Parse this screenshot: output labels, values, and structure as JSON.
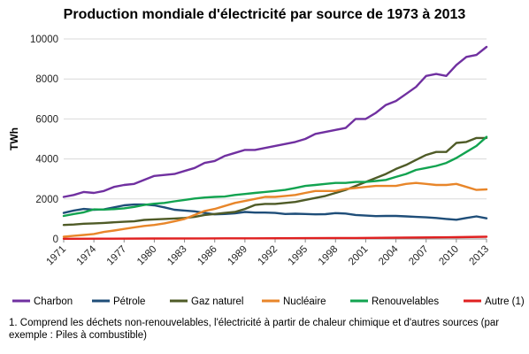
{
  "chart_data": {
    "type": "line",
    "title": "Production mondiale d'électricité par source de 1973 à 2013",
    "ylabel": "TWh",
    "xlabel": "",
    "ylim": [
      0,
      10000
    ],
    "yticks": [
      0,
      2000,
      4000,
      6000,
      8000,
      10000
    ],
    "xlim": [
      1971,
      2013
    ],
    "xticks": [
      1971,
      1974,
      1977,
      1980,
      1983,
      1986,
      1989,
      1992,
      1995,
      1998,
      2001,
      2004,
      2007,
      2010,
      2013
    ],
    "grid": "horizontal",
    "legend_position": "bottom",
    "series": [
      {
        "name": "Charbon",
        "color": "#7030A0",
        "x": [
          1971,
          1972,
          1973,
          1974,
          1975,
          1976,
          1977,
          1978,
          1979,
          1980,
          1981,
          1982,
          1983,
          1984,
          1985,
          1986,
          1987,
          1988,
          1989,
          1990,
          1991,
          1992,
          1993,
          1994,
          1995,
          1996,
          1997,
          1998,
          1999,
          2000,
          2001,
          2002,
          2003,
          2004,
          2005,
          2006,
          2007,
          2008,
          2009,
          2010,
          2011,
          2012,
          2013
        ],
        "y": [
          2100,
          2200,
          2350,
          2300,
          2400,
          2600,
          2700,
          2750,
          2950,
          3150,
          3200,
          3250,
          3400,
          3550,
          3800,
          3900,
          4150,
          4300,
          4450,
          4450,
          4550,
          4650,
          4750,
          4850,
          5000,
          5250,
          5350,
          5450,
          5550,
          6000,
          6000,
          6300,
          6700,
          6900,
          7250,
          7600,
          8150,
          8250,
          8150,
          8700,
          9100,
          9200,
          9600
        ]
      },
      {
        "name": "Pétrole",
        "color": "#1F4E79",
        "x": [
          1971,
          1972,
          1973,
          1974,
          1975,
          1976,
          1977,
          1978,
          1979,
          1980,
          1981,
          1982,
          1983,
          1984,
          1985,
          1986,
          1987,
          1988,
          1989,
          1990,
          1991,
          1992,
          1993,
          1994,
          1995,
          1996,
          1997,
          1998,
          1999,
          2000,
          2001,
          2002,
          2003,
          2004,
          2005,
          2006,
          2007,
          2008,
          2009,
          2010,
          2011,
          2012,
          2013
        ],
        "y": [
          1300,
          1420,
          1500,
          1460,
          1480,
          1580,
          1680,
          1720,
          1720,
          1680,
          1580,
          1460,
          1420,
          1380,
          1300,
          1230,
          1250,
          1280,
          1350,
          1320,
          1320,
          1300,
          1250,
          1260,
          1250,
          1230,
          1240,
          1290,
          1270,
          1200,
          1170,
          1140,
          1150,
          1150,
          1130,
          1100,
          1080,
          1050,
          1000,
          960,
          1050,
          1130,
          1030
        ]
      },
      {
        "name": "Gaz naturel",
        "color": "#4F5B27",
        "x": [
          1971,
          1972,
          1973,
          1974,
          1975,
          1976,
          1977,
          1978,
          1979,
          1980,
          1981,
          1982,
          1983,
          1984,
          1985,
          1986,
          1987,
          1988,
          1989,
          1990,
          1991,
          1992,
          1993,
          1994,
          1995,
          1996,
          1997,
          1998,
          1999,
          2000,
          2001,
          2002,
          2003,
          2004,
          2005,
          2006,
          2007,
          2008,
          2009,
          2010,
          2011,
          2012,
          2013
        ],
        "y": [
          700,
          720,
          760,
          780,
          800,
          830,
          860,
          880,
          950,
          980,
          1000,
          1020,
          1050,
          1100,
          1200,
          1250,
          1300,
          1350,
          1500,
          1700,
          1750,
          1750,
          1800,
          1850,
          1950,
          2050,
          2150,
          2300,
          2450,
          2650,
          2850,
          3050,
          3250,
          3500,
          3700,
          3950,
          4200,
          4350,
          4350,
          4800,
          4850,
          5050,
          5050
        ]
      },
      {
        "name": "Nucléaire",
        "color": "#E8862A",
        "x": [
          1971,
          1972,
          1973,
          1974,
          1975,
          1976,
          1977,
          1978,
          1979,
          1980,
          1981,
          1982,
          1983,
          1984,
          1985,
          1986,
          1987,
          1988,
          1989,
          1990,
          1991,
          1992,
          1993,
          1994,
          1995,
          1996,
          1997,
          1998,
          1999,
          2000,
          2001,
          2002,
          2003,
          2004,
          2005,
          2006,
          2007,
          2008,
          2009,
          2010,
          2011,
          2012,
          2013
        ],
        "y": [
          110,
          160,
          200,
          250,
          350,
          420,
          500,
          580,
          650,
          700,
          780,
          880,
          1000,
          1200,
          1400,
          1500,
          1650,
          1800,
          1900,
          2000,
          2100,
          2100,
          2150,
          2200,
          2300,
          2400,
          2400,
          2400,
          2500,
          2550,
          2600,
          2650,
          2650,
          2650,
          2750,
          2800,
          2750,
          2700,
          2700,
          2750,
          2600,
          2450,
          2480
        ]
      },
      {
        "name": "Renouvelables",
        "color": "#12A350",
        "x": [
          1971,
          1972,
          1973,
          1974,
          1975,
          1976,
          1977,
          1978,
          1979,
          1980,
          1981,
          1982,
          1983,
          1984,
          1985,
          1986,
          1987,
          1988,
          1989,
          1990,
          1991,
          1992,
          1993,
          1994,
          1995,
          1996,
          1997,
          1998,
          1999,
          2000,
          2001,
          2002,
          2003,
          2004,
          2005,
          2006,
          2007,
          2008,
          2009,
          2010,
          2011,
          2012,
          2013
        ],
        "y": [
          1150,
          1250,
          1330,
          1480,
          1470,
          1490,
          1530,
          1600,
          1700,
          1760,
          1800,
          1880,
          1950,
          2020,
          2070,
          2100,
          2120,
          2200,
          2250,
          2300,
          2350,
          2400,
          2450,
          2550,
          2650,
          2700,
          2750,
          2800,
          2800,
          2850,
          2850,
          2900,
          2950,
          3100,
          3250,
          3450,
          3550,
          3650,
          3800,
          4050,
          4350,
          4650,
          5100
        ]
      },
      {
        "name": "Autre (1)",
        "color": "#E02020",
        "x": [
          1971,
          1975,
          1980,
          1985,
          1990,
          1995,
          2000,
          2005,
          2010,
          2013
        ],
        "y": [
          10,
          15,
          20,
          25,
          30,
          40,
          50,
          70,
          90,
          110
        ]
      }
    ],
    "footnote": "1. Comprend les déchets non-renouvelables, l'électricité à partir de chaleur chimique et d'autres sources (par exemple : Piles à combustible)"
  }
}
